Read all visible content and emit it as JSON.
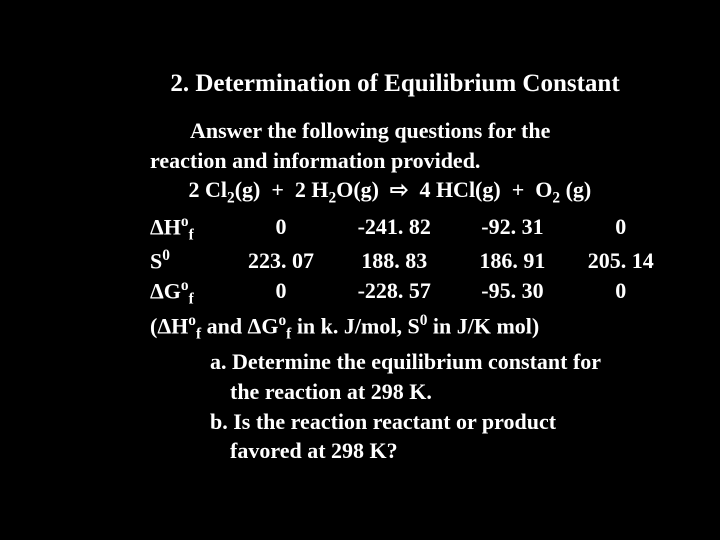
{
  "background_color": "#000000",
  "text_color": "#ffffff",
  "font_family": "Times New Roman",
  "title": "2. Determination of Equilibrium Constant",
  "intro_line1_indent": "Answer the following questions for the",
  "intro_line2": "reaction and information provided.",
  "reaction": {
    "r1": "2 Cl",
    "r1_sub": "2",
    "r1_state": "(g)",
    "plus1": "+",
    "r2": "2 H",
    "r2_sub": "2",
    "r2_rest": "O(g)",
    "arrow": "⇨",
    "p1": "4 HCl(g)",
    "plus2": "+",
    "p2": "O",
    "p2_sub": "2",
    "p2_state": " (g)"
  },
  "rows": [
    {
      "label_prefix": "ΔH",
      "label_sup": "o",
      "label_sub": "f",
      "v1": "0",
      "v2": "-241. 82",
      "v3": "-92. 31",
      "v4": "0"
    },
    {
      "label_prefix": "S",
      "label_sup": "0",
      "label_sub": "",
      "v1": "223. 07",
      "v2": "188. 83",
      "v3": "186. 91",
      "v4": "205. 14"
    },
    {
      "label_prefix": "ΔG",
      "label_sup": "o",
      "label_sub": "f",
      "v1": "0",
      "v2": "-228. 57",
      "v3": "-95. 30",
      "v4": "0"
    }
  ],
  "units_line_p1": " (ΔH",
  "units_line_p2": " and ΔG",
  "units_line_p3": " in  k. J/mol,   S",
  "units_line_p4": " in J/K mol)",
  "units_sup1": "o",
  "units_sub1": "f",
  "units_sup2": "o",
  "units_sub2": "f",
  "units_sup3": "0",
  "qa_line1": "a. Determine the equilibrium constant for",
  "qa_line2": "the reaction at 298 K.",
  "qb_line1": "b. Is the reaction reactant or product",
  "qb_line2": "favored at 298 K?"
}
